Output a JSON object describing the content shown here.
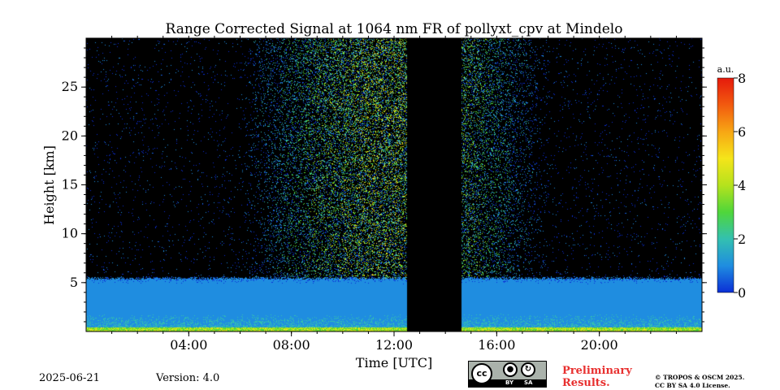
{
  "chart_data": {
    "type": "heatmap",
    "title": "Range Corrected Signal at 1064 nm FR of pollyxt_cpv at Mindelo",
    "xlabel": "Time [UTC]",
    "ylabel": "Height [km]",
    "xlim_hours": [
      0,
      24
    ],
    "ylim_km": [
      0,
      30
    ],
    "x_ticks": [
      {
        "hour": 4,
        "label": "04:00"
      },
      {
        "hour": 8,
        "label": "08:00"
      },
      {
        "hour": 12,
        "label": "12:00"
      },
      {
        "hour": 16,
        "label": "16:00"
      },
      {
        "hour": 20,
        "label": "20:00"
      }
    ],
    "y_ticks": [
      {
        "value": 5,
        "label": "5"
      },
      {
        "value": 10,
        "label": "10"
      },
      {
        "value": 15,
        "label": "15"
      },
      {
        "value": 20,
        "label": "20"
      },
      {
        "value": 25,
        "label": "25"
      }
    ],
    "colorbar": {
      "label": "a.u.",
      "range": [
        0,
        8
      ],
      "ticks": [
        {
          "value": 0,
          "label": "0"
        },
        {
          "value": 2,
          "label": "2"
        },
        {
          "value": 4,
          "label": "4"
        },
        {
          "value": 6,
          "label": "6"
        },
        {
          "value": 8,
          "label": "8"
        }
      ],
      "colormap": [
        "#0b2fd6",
        "#1f8de0",
        "#33c0b0",
        "#4fd63a",
        "#b5e21d",
        "#f5e51a",
        "#f7a614",
        "#f25a0f",
        "#e51a0c"
      ]
    },
    "no_data_gap_hours": [
      12.5,
      14.6
    ],
    "boundary_layer_top_km": 5.5,
    "background_color": "#000000"
  },
  "footer": {
    "date": "2025-06-21",
    "version": "Version: 4.0",
    "license_badge": {
      "cc": "cc",
      "by": "BY",
      "sa": "SA"
    },
    "preliminary": "Preliminary\nResults.",
    "copyright": "© TROPOS & OSCM 2025.\nCC BY SA 4.0 License."
  }
}
